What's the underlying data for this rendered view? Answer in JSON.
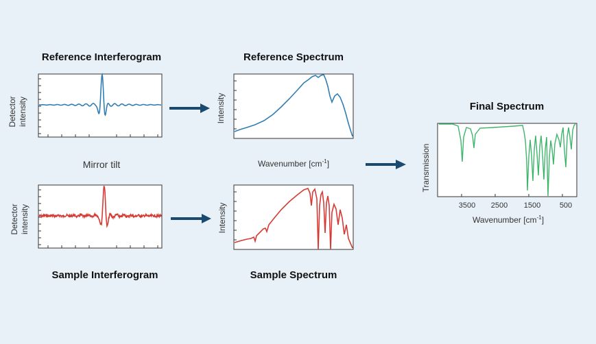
{
  "titles": {
    "ref_interferogram": "Reference Interferogram",
    "ref_spectrum": "Reference Spectrum",
    "sample_interferogram": "Sample Interferogram",
    "sample_spectrum": "Sample Spectrum",
    "final_spectrum": "Final Spectrum"
  },
  "labels": {
    "detector_line1": "Detector",
    "detector_line2": "intensity",
    "intensity": "Intensity",
    "transmission": "Transmission",
    "mirror_tilt": "Mirror tilt",
    "wavenumber_prefix": "Wavenumber [cm",
    "wavenumber_exp": "-1",
    "wavenumber_suffix": "]"
  },
  "final_ticks": [
    "3500",
    "2500",
    "1500",
    "500"
  ],
  "colors": {
    "background": "#e8f1f8",
    "reference_trace": "#2f7db3",
    "sample_trace": "#d63a35",
    "final_trace": "#3db56a",
    "arrow": "#1c4a6e"
  }
}
